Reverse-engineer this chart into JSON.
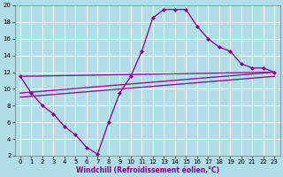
{
  "bg_color": "#b0dde8",
  "grid_color": "#ffffff",
  "line_color": "#880088",
  "marker": "D",
  "markersize": 2.5,
  "linewidth": 0.9,
  "xlabel": "Windchill (Refroidissement éolien,°C)",
  "xlabel_fontsize": 5.5,
  "tick_fontsize": 5,
  "xlim": [
    -0.5,
    23.5
  ],
  "ylim": [
    2,
    20
  ],
  "xticks": [
    0,
    1,
    2,
    3,
    4,
    5,
    6,
    7,
    8,
    9,
    10,
    11,
    12,
    13,
    14,
    15,
    16,
    17,
    18,
    19,
    20,
    21,
    22,
    23
  ],
  "yticks": [
    2,
    4,
    6,
    8,
    10,
    12,
    14,
    16,
    18,
    20
  ],
  "series": [
    [
      0,
      11.5
    ],
    [
      1,
      9.5
    ],
    [
      2,
      8.0
    ],
    [
      3,
      7.0
    ],
    [
      4,
      5.5
    ],
    [
      5,
      4.5
    ],
    [
      6,
      3.0
    ],
    [
      7,
      2.2
    ],
    [
      8,
      6.0
    ],
    [
      9,
      9.5
    ],
    [
      10,
      11.5
    ],
    [
      11,
      14.5
    ],
    [
      12,
      18.5
    ],
    [
      13,
      19.5
    ],
    [
      14,
      19.5
    ],
    [
      15,
      19.5
    ],
    [
      16,
      17.5
    ],
    [
      17,
      16.0
    ],
    [
      18,
      15.0
    ],
    [
      19,
      14.5
    ],
    [
      20,
      13.0
    ],
    [
      21,
      12.5
    ],
    [
      22,
      12.5
    ],
    [
      23,
      12.0
    ]
  ],
  "ref_lines": [
    [
      [
        0,
        11.5
      ],
      [
        23,
        12.0
      ]
    ],
    [
      [
        0,
        9.5
      ],
      [
        23,
        12.0
      ]
    ],
    [
      [
        0,
        9.0
      ],
      [
        23,
        11.5
      ]
    ]
  ]
}
